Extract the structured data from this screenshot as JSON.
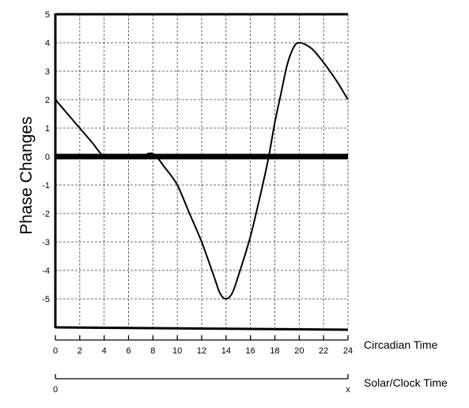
{
  "chart_data": {
    "type": "line",
    "title": "",
    "ylabel": "Phase Changes",
    "xlabel": "Circadian Time",
    "secondary_xlabel": "Solar/Clock Time",
    "xlim": [
      0,
      24
    ],
    "ylim": [
      -6,
      5
    ],
    "grid": true,
    "x_ticks": [
      0,
      2,
      4,
      6,
      8,
      10,
      12,
      14,
      16,
      18,
      20,
      22,
      24
    ],
    "x_tick_labels": [
      "0",
      "2",
      "4",
      "6",
      "8",
      "10",
      "12",
      "14",
      "16",
      "18",
      "20",
      "22",
      "24"
    ],
    "y_ticks": [
      5,
      4,
      3,
      2,
      1,
      0,
      -1,
      -2,
      -3,
      -4,
      -5
    ],
    "y_tick_labels": [
      "5",
      "4",
      "3",
      "2",
      "1",
      "0",
      "-1",
      "-2",
      "-3",
      "-4",
      "-5"
    ],
    "secondary_tick_labels": [
      "0",
      "x"
    ],
    "series": [
      {
        "x": [
          0,
          1,
          2,
          3,
          4,
          5,
          6,
          7,
          8,
          9,
          10,
          11,
          12,
          13,
          13.5,
          14,
          14.5,
          15,
          16,
          17,
          17.5,
          18,
          18.5,
          19,
          19.5,
          20,
          21,
          22,
          23,
          24
        ],
        "y": [
          2,
          1.5,
          1.0,
          0.5,
          0,
          0,
          0,
          0,
          0.1,
          -0.4,
          -1.0,
          -2.0,
          -3.0,
          -4.2,
          -4.8,
          -5,
          -4.8,
          -4.2,
          -2.8,
          -1.0,
          0,
          1.2,
          2.2,
          3.2,
          3.8,
          4,
          3.8,
          3.3,
          2.7,
          2.0
        ]
      }
    ]
  }
}
